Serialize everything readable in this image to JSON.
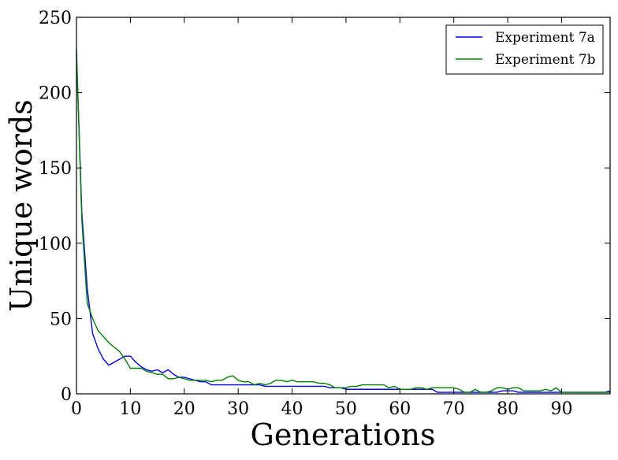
{
  "chart_data": {
    "type": "line",
    "title": "",
    "xlabel": "Generations",
    "ylabel": "Unique words",
    "xlim": [
      0,
      99
    ],
    "ylim": [
      0,
      250
    ],
    "xticks": [
      0,
      10,
      20,
      30,
      40,
      50,
      60,
      70,
      80,
      90
    ],
    "yticks": [
      0,
      50,
      100,
      150,
      200,
      250
    ],
    "grid": false,
    "legend": "top-right",
    "series": [
      {
        "name": "Experiment 7a",
        "color": "#0000ff",
        "x": [
          0,
          1,
          2,
          3,
          4,
          5,
          6,
          7,
          8,
          9,
          10,
          11,
          12,
          13,
          14,
          15,
          16,
          17,
          18,
          19,
          20,
          21,
          22,
          23,
          24,
          25,
          26,
          27,
          28,
          29,
          30,
          31,
          32,
          33,
          34,
          35,
          36,
          37,
          38,
          39,
          40,
          41,
          42,
          43,
          44,
          45,
          46,
          47,
          48,
          49,
          50,
          51,
          52,
          53,
          54,
          55,
          56,
          57,
          58,
          59,
          60,
          61,
          62,
          63,
          64,
          65,
          66,
          67,
          68,
          69,
          70,
          71,
          72,
          73,
          74,
          75,
          76,
          77,
          78,
          79,
          80,
          81,
          82,
          83,
          84,
          85,
          86,
          87,
          88,
          89,
          90,
          91,
          92,
          93,
          94,
          95,
          96,
          97,
          98,
          99
        ],
        "y": [
          226,
          120,
          70,
          40,
          30,
          23,
          19,
          21,
          23,
          25,
          25,
          21,
          18,
          16,
          15,
          16,
          14,
          16,
          13,
          11,
          11,
          10,
          9,
          8,
          8,
          6,
          6,
          6,
          6,
          6,
          6,
          6,
          6,
          6,
          6,
          5,
          5,
          5,
          5,
          5,
          5,
          5,
          5,
          5,
          5,
          5,
          5,
          4,
          4,
          4,
          3,
          3,
          3,
          3,
          3,
          3,
          3,
          3,
          3,
          3,
          3,
          3,
          3,
          3,
          3,
          3,
          3,
          1,
          1,
          1,
          1,
          1,
          1,
          1,
          1,
          1,
          1,
          1,
          1,
          2,
          2,
          2,
          1,
          1,
          1,
          1,
          1,
          1,
          1,
          1,
          1,
          1,
          1,
          1,
          1,
          1,
          1,
          1,
          1,
          2
        ]
      },
      {
        "name": "Experiment 7b",
        "color": "#008000",
        "x": [
          0,
          1,
          2,
          3,
          4,
          5,
          6,
          7,
          8,
          9,
          10,
          11,
          12,
          13,
          14,
          15,
          16,
          17,
          18,
          19,
          20,
          21,
          22,
          23,
          24,
          25,
          26,
          27,
          28,
          29,
          30,
          31,
          32,
          33,
          34,
          35,
          36,
          37,
          38,
          39,
          40,
          41,
          42,
          43,
          44,
          45,
          46,
          47,
          48,
          49,
          50,
          51,
          52,
          53,
          54,
          55,
          56,
          57,
          58,
          59,
          60,
          61,
          62,
          63,
          64,
          65,
          66,
          67,
          68,
          69,
          70,
          71,
          72,
          73,
          74,
          75,
          76,
          77,
          78,
          79,
          80,
          81,
          82,
          83,
          84,
          85,
          86,
          87,
          88,
          89,
          90,
          91,
          92,
          93,
          94,
          95,
          96,
          97,
          98,
          99
        ],
        "y": [
          229,
          115,
          60,
          50,
          42,
          38,
          34,
          31,
          28,
          23,
          17,
          17,
          17,
          15,
          14,
          13,
          13,
          10,
          10,
          11,
          10,
          9,
          9,
          9,
          9,
          8,
          9,
          9,
          11,
          12,
          9,
          8,
          8,
          6,
          7,
          6,
          7,
          9,
          9,
          8,
          9,
          8,
          8,
          8,
          8,
          7,
          7,
          6,
          4,
          4,
          4,
          5,
          5,
          6,
          6,
          6,
          6,
          6,
          4,
          5,
          3,
          3,
          3,
          4,
          4,
          3,
          4,
          4,
          4,
          4,
          4,
          3,
          1,
          1,
          3,
          1,
          1,
          2,
          4,
          4,
          3,
          4,
          4,
          2,
          2,
          2,
          2,
          3,
          2,
          4,
          1,
          1,
          1,
          1,
          1,
          1,
          1,
          1,
          1,
          1
        ]
      }
    ]
  }
}
